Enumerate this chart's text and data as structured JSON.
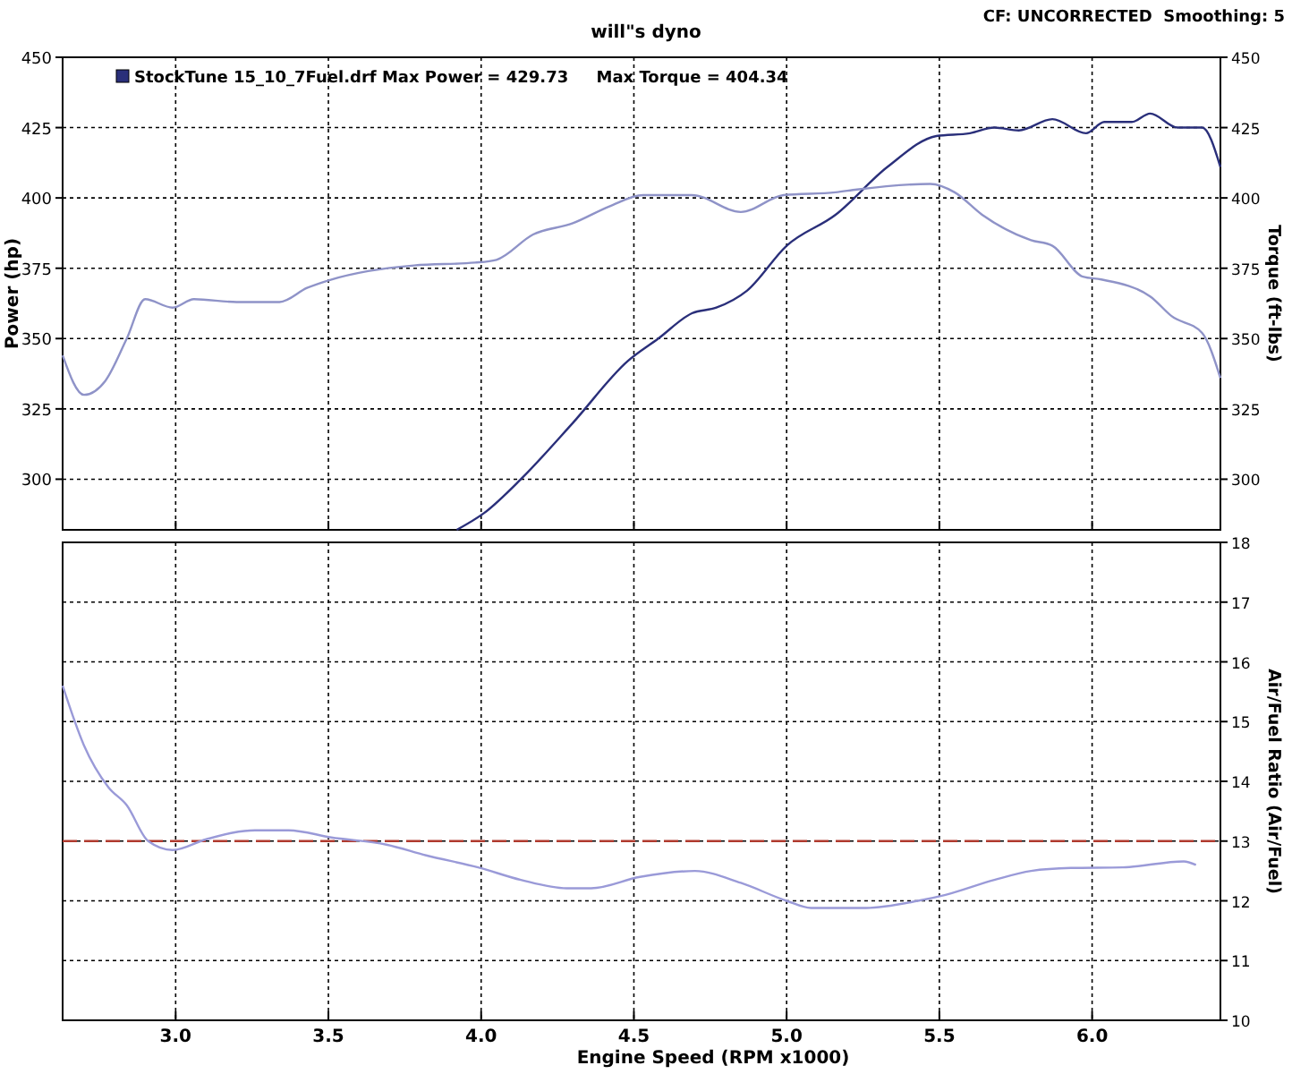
{
  "chart_data": [
    {
      "type": "line",
      "subtitle": "will\"s dyno",
      "ylabel": "Power (hp)",
      "y2label": "Torque (ft-lbs)",
      "annotations": [
        "StockTune 15_10_7Fuel.drf Max Power = 429.73     Max Torque = 404.34",
        "CF: UNCORRECTED  Smoothing: 5"
      ],
      "xlim": [
        2.63,
        6.42
      ],
      "xticks": [
        3.0,
        3.5,
        4.0,
        4.5,
        5.0,
        5.5,
        6.0
      ],
      "ylim": [
        282,
        450
      ],
      "yticks": [
        300,
        325,
        350,
        375,
        400,
        425,
        450
      ],
      "y2lim": [
        282,
        450
      ],
      "y2ticks": [
        300,
        325,
        350,
        375,
        400,
        425,
        450
      ],
      "grid": true,
      "tick_labels": "y",
      "series": [
        {
          "color": "#2a2f7a",
          "x": [
            3.92,
            4.01,
            4.13,
            4.3,
            4.48,
            4.58,
            4.69,
            4.77,
            4.87,
            5.0,
            5.16,
            5.33,
            5.49,
            5.6,
            5.68,
            5.76,
            5.87,
            5.98,
            6.04,
            6.13,
            6.19,
            6.28,
            6.36,
            6.42
          ],
          "values": [
            282,
            288,
            300,
            320,
            342,
            350,
            359,
            361,
            367,
            383,
            394,
            411,
            422,
            423,
            425,
            424,
            428,
            423,
            427,
            427,
            430,
            425,
            425,
            411
          ]
        },
        {
          "color": "#8f93c8",
          "axis": "y2",
          "x": [
            2.63,
            2.7,
            2.77,
            2.84,
            2.9,
            2.99,
            3.06,
            3.2,
            3.34,
            3.43,
            3.51,
            3.63,
            3.78,
            3.98,
            4.05,
            4.17,
            4.3,
            4.42,
            4.53,
            4.69,
            4.85,
            4.99,
            5.16,
            5.23,
            5.47,
            5.55,
            5.64,
            5.8,
            5.87,
            5.97,
            6.03,
            6.19,
            6.26,
            6.36,
            6.42
          ],
          "values": [
            344,
            330,
            335,
            350,
            364,
            361,
            364,
            363,
            363,
            368,
            371,
            374,
            376,
            377,
            378,
            387,
            391,
            397,
            401,
            401,
            395,
            401,
            402,
            403,
            405,
            402,
            394,
            385,
            383,
            372,
            371,
            365,
            358,
            352,
            336
          ]
        }
      ]
    },
    {
      "type": "line",
      "xlabel": "Engine Speed (RPM x1000)",
      "y2label": "Air/Fuel Ratio (Air/Fuel)",
      "xlim": [
        2.63,
        6.42
      ],
      "xticks": [
        {
          "value": 3,
          "label": "3.0"
        },
        3.5,
        {
          "value": 4,
          "label": "4.0"
        },
        4.5,
        {
          "value": 5,
          "label": "5.0"
        },
        5.5,
        {
          "value": 6,
          "label": "6.0"
        }
      ],
      "y2lim": [
        10,
        18
      ],
      "y2ticks": [
        10,
        11,
        12,
        13,
        14,
        15,
        16,
        17,
        18
      ],
      "grid": true,
      "ref_lines": [
        {
          "axis": "y2",
          "value": 13,
          "color": "#b03a2e",
          "line_style": "dashed"
        }
      ],
      "series": [
        {
          "color": "#9a9ad8",
          "axis": "y2",
          "x": [
            2.63,
            2.7,
            2.78,
            2.84,
            2.91,
            2.99,
            3.1,
            3.26,
            3.37,
            3.51,
            3.69,
            3.82,
            3.99,
            4.13,
            4.28,
            4.36,
            4.52,
            4.7,
            4.85,
            5.0,
            5.08,
            5.26,
            5.43,
            5.52,
            5.68,
            5.8,
            5.93,
            6.1,
            6.3,
            6.34
          ],
          "values": [
            15.6,
            14.6,
            13.9,
            13.6,
            13.0,
            12.85,
            13.03,
            13.18,
            13.18,
            13.06,
            12.94,
            12.76,
            12.56,
            12.35,
            12.21,
            12.21,
            12.4,
            12.5,
            12.3,
            12.0,
            11.88,
            11.88,
            12.0,
            12.1,
            12.35,
            12.5,
            12.55,
            12.56,
            12.66,
            12.6
          ]
        }
      ]
    }
  ]
}
